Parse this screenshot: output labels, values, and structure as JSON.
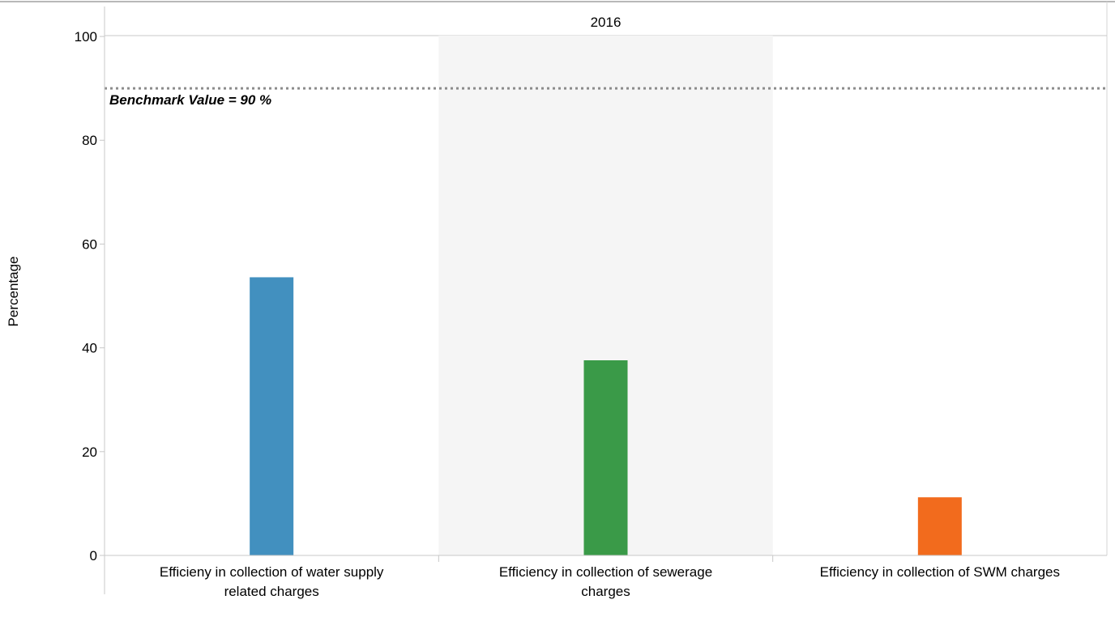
{
  "chart_data": {
    "type": "bar",
    "column_header": "2016",
    "ylabel": "Percentage",
    "xlabel": "",
    "ylim": [
      0,
      105
    ],
    "yticks": [
      0,
      20,
      40,
      60,
      80,
      100
    ],
    "categories": [
      [
        "Efficieny in collection of water supply",
        "related charges"
      ],
      [
        "Efficiency in collection of sewerage",
        "charges"
      ],
      [
        "Efficiency in collection of SWM charges"
      ]
    ],
    "values": [
      53.6,
      37.6,
      11.2
    ],
    "colors": [
      "#4290bf",
      "#3a9a48",
      "#f26b1d"
    ],
    "band_color": "#f5f5f5",
    "reference_line": {
      "value": 90,
      "label": "Benchmark Value = 90 %",
      "style": "dotted",
      "color": "#8c8c8c"
    },
    "grid": false,
    "legend": "none"
  }
}
